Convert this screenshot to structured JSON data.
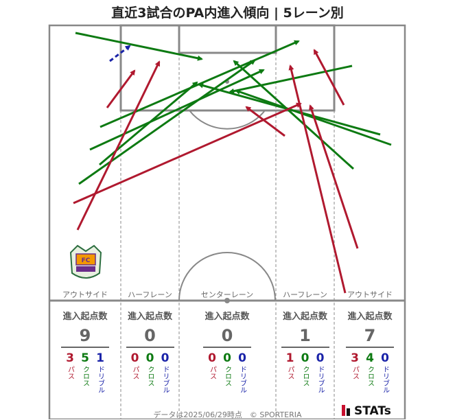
{
  "title": "直近3試合のPA内進入傾向 | 5レーン別",
  "lanes": [
    {
      "label": "アウトサイド",
      "stat_title": "進入起点数",
      "total": "9",
      "pass": "3",
      "cross": "5",
      "dribble": "1"
    },
    {
      "label": "ハーフレーン",
      "stat_title": "進入起点数",
      "total": "0",
      "pass": "0",
      "cross": "0",
      "dribble": "0"
    },
    {
      "label": "センターレーン",
      "stat_title": "進入起点数",
      "total": "0",
      "pass": "0",
      "cross": "0",
      "dribble": "0"
    },
    {
      "label": "ハーフレーン",
      "stat_title": "進入起点数",
      "total": "1",
      "pass": "1",
      "cross": "0",
      "dribble": "0"
    },
    {
      "label": "アウトサイド",
      "stat_title": "進入起点数",
      "total": "7",
      "pass": "3",
      "cross": "4",
      "dribble": "0"
    }
  ],
  "labels": {
    "pass": "パス",
    "cross": "クロス",
    "dribble": "ドリブル"
  },
  "colors": {
    "pass": "#b0192f",
    "cross": "#0d7a12",
    "dribble": "#1a23a8"
  },
  "footer": "データは2025/06/29時点　© SPORTERIA",
  "brand": "STATs",
  "logo": "ehime-fc-crest-icon"
}
